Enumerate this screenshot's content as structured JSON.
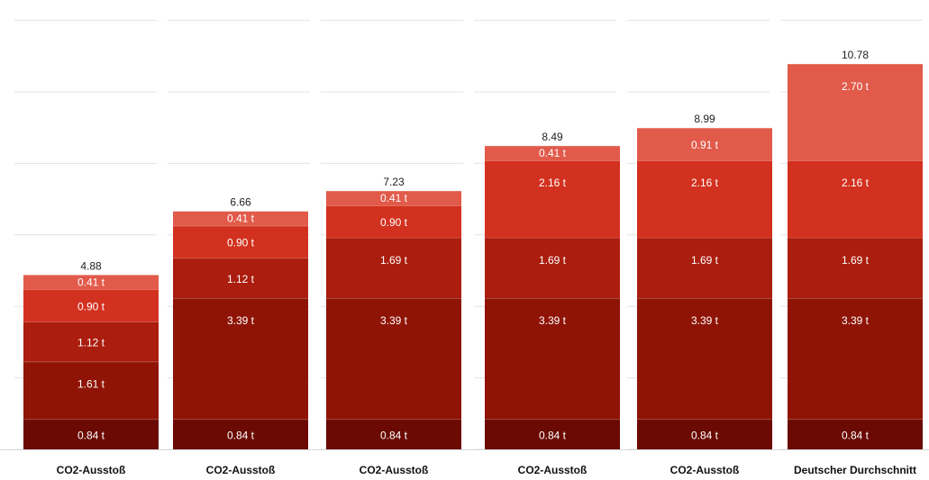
{
  "chart_data": {
    "type": "bar",
    "stacked": true,
    "categories": [
      "CO2-Ausstoß",
      "CO2-Ausstoß",
      "CO2-Ausstoß",
      "CO2-Ausstoß",
      "CO2-Ausstoß",
      "Deutscher Durchschnitt"
    ],
    "unit_suffix": " t",
    "series": [
      {
        "values": [
          0.84,
          0.84,
          0.84,
          0.84,
          0.84,
          0.84
        ]
      },
      {
        "values": [
          1.61,
          3.39,
          3.39,
          3.39,
          3.39,
          3.39
        ]
      },
      {
        "values": [
          1.12,
          1.12,
          1.69,
          1.69,
          1.69,
          1.69
        ]
      },
      {
        "values": [
          0.9,
          0.9,
          0.9,
          2.16,
          2.16,
          2.16
        ]
      },
      {
        "values": [
          0.41,
          0.41,
          0.41,
          0.41,
          0.91,
          2.7
        ]
      }
    ],
    "segment_labels": [
      [
        "0.84 t",
        "1.61 t",
        "1.12 t",
        "0.90 t",
        "0.41 t"
      ],
      [
        "0.84 t",
        "3.39 t",
        "1.12 t",
        "0.90 t",
        "0.41 t"
      ],
      [
        "0.84 t",
        "3.39 t",
        "1.69 t",
        "0.90 t",
        "0.41 t"
      ],
      [
        "0.84 t",
        "3.39 t",
        "1.69 t",
        "2.16 t",
        "0.41 t"
      ],
      [
        "0.84 t",
        "3.39 t",
        "1.69 t",
        "2.16 t",
        "0.91 t"
      ],
      [
        "0.84 t",
        "3.39 t",
        "1.69 t",
        "2.16 t",
        "2.70 t"
      ]
    ],
    "totals": [
      "4.88",
      "6.66",
      "7.23",
      "8.49",
      "8.99",
      "10.78"
    ],
    "ylim": [
      0,
      12
    ],
    "grid": true,
    "legend": "none",
    "colors": [
      "#6a0a02",
      "#8f1406",
      "#ab1d0e",
      "#d3311f",
      "#e15a4a"
    ]
  }
}
